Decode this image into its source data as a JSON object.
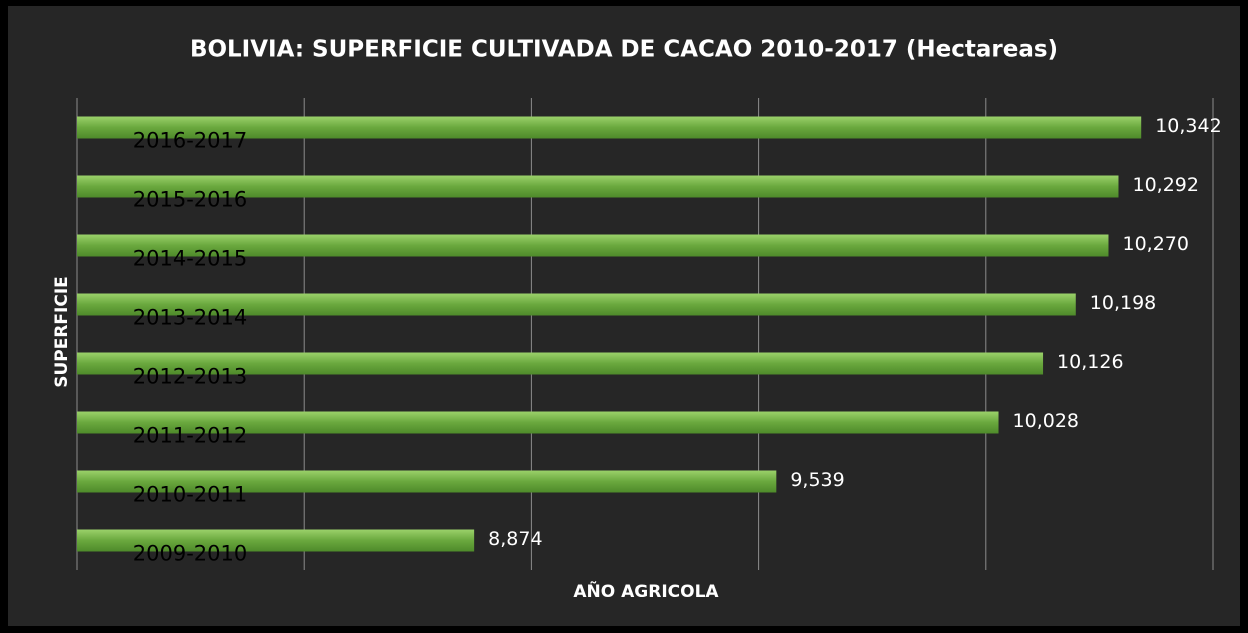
{
  "chart_data": {
    "type": "barh",
    "title": "BOLIVIA: SUPERFICIE CULTIVADA DE CACAO 2010-2017 (Hectareas)",
    "xlabel": "AÑO AGRICOLA",
    "ylabel": "SUPERFICIE",
    "categories": [
      "2009-2010",
      "2010-2011",
      "2011-2012",
      "2012-2013",
      "2013-2014",
      "2014-2015",
      "2015-2016",
      "2016-2017"
    ],
    "values": [
      8874,
      9539,
      10028,
      10126,
      10198,
      10270,
      10292,
      10342
    ],
    "value_labels": [
      "8,874",
      "9,539",
      "10,028",
      "10,126",
      "10,198",
      "10,270",
      "10,292",
      "10,342"
    ],
    "color": "#6aa83e",
    "xlim": [
      8000,
      10500
    ],
    "xticks": [
      8000,
      8500,
      9000,
      9500,
      10000,
      10500
    ],
    "grid": true
  }
}
